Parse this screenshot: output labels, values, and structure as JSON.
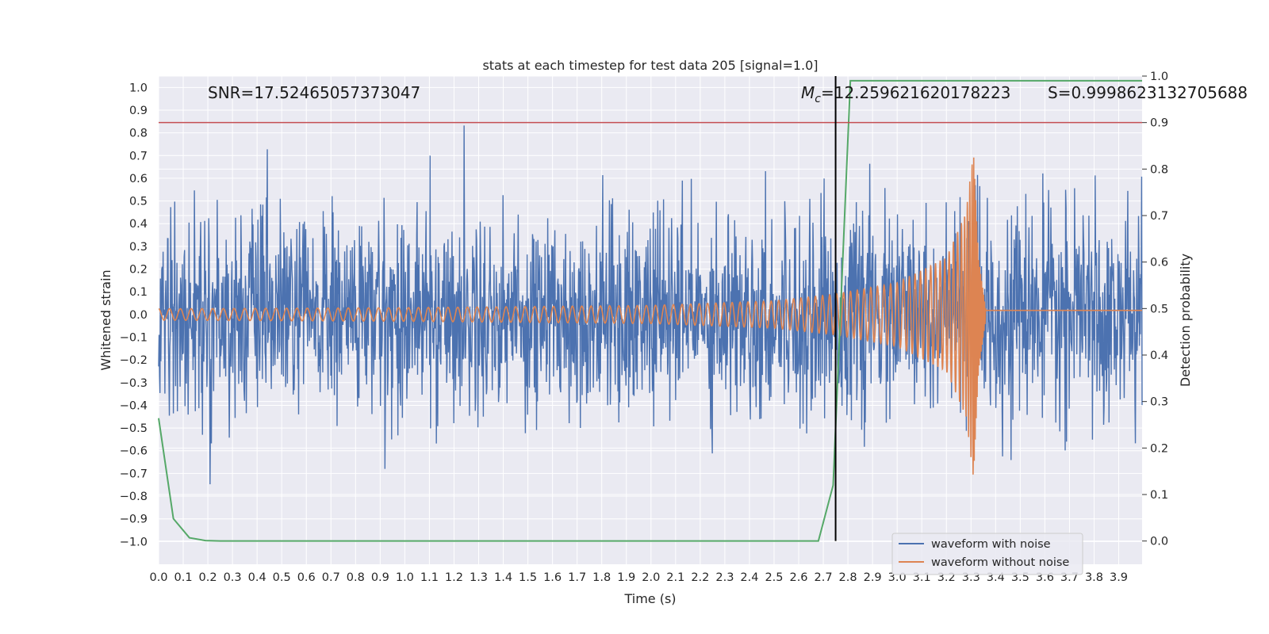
{
  "chart_data": {
    "type": "line",
    "title": "stats at each timestep for test data 205 [signal=1.0]",
    "xlabel": "Time (s)",
    "ylabel_left": "Whitened strain",
    "ylabel_right": "Detection probability",
    "xlim": [
      0.0,
      3.995
    ],
    "ylim_left": [
      -1.1,
      1.05
    ],
    "ylim_right": [
      -0.05,
      1.0
    ],
    "x_ticks": [
      "0.0",
      "0.1",
      "0.2",
      "0.3",
      "0.4",
      "0.5",
      "0.6",
      "0.7",
      "0.8",
      "0.9",
      "1.0",
      "1.1",
      "1.2",
      "1.3",
      "1.4",
      "1.5",
      "1.6",
      "1.7",
      "1.8",
      "1.9",
      "2.0",
      "2.1",
      "2.2",
      "2.3",
      "2.4",
      "2.5",
      "2.6",
      "2.7",
      "2.8",
      "2.9",
      "3.0",
      "3.1",
      "3.2",
      "3.3",
      "3.4",
      "3.5",
      "3.6",
      "3.7",
      "3.8",
      "3.9"
    ],
    "y_ticks_left": [
      "1.0",
      "0.9",
      "0.8",
      "0.7",
      "0.6",
      "0.5",
      "0.4",
      "0.3",
      "0.2",
      "0.1",
      "0.0",
      "-0.1",
      "-0.2",
      "-0.3",
      "-0.4",
      "-0.5",
      "-0.6",
      "-0.7",
      "-0.8",
      "-0.9",
      "-1.0"
    ],
    "y_ticks_right": [
      "1.0",
      "0.9",
      "0.8",
      "0.7",
      "0.6",
      "0.5",
      "0.4",
      "0.3",
      "0.2",
      "0.1",
      "0.0"
    ],
    "annotations": {
      "snr": "SNR=17.52465057373047",
      "mc_symbol": "M",
      "mc_subscript": "c",
      "mc_value": "=12.259621620178223",
      "s": "S=0.9998623132705688"
    },
    "threshold_line": {
      "axis": "right",
      "value": 0.9,
      "color": "#c44e52"
    },
    "vertical_marker": {
      "x": 2.75,
      "color": "#000000"
    },
    "grid": true,
    "legend_position": "lower-right",
    "colors": {
      "noisy": "#4c72b0",
      "clean": "#dd8452",
      "probability": "#55a868",
      "background": "#eaeaf2",
      "grid": "#ffffff"
    },
    "series": [
      {
        "name": "waveform with noise",
        "axis": "left",
        "kind": "noisy_strain",
        "approx_std": 0.22,
        "approx_range": [
          -1.0,
          0.96
        ]
      },
      {
        "name": "waveform without noise",
        "axis": "left",
        "kind": "chirp",
        "t_merger": 3.31,
        "envelope": {
          "t": [
            0.0,
            1.0,
            2.0,
            2.5,
            2.75,
            3.0,
            3.2,
            3.28,
            3.31,
            3.33,
            3.36,
            3.995
          ],
          "amp": [
            0.025,
            0.03,
            0.04,
            0.06,
            0.09,
            0.14,
            0.25,
            0.45,
            0.72,
            0.25,
            0.02,
            0.02
          ]
        },
        "frequency_hz": {
          "t": [
            0.0,
            2.0,
            3.0,
            3.25,
            3.31
          ],
          "f": [
            22.5,
            27,
            38,
            60,
            120
          ]
        }
      },
      {
        "name": "detection probability",
        "axis": "right",
        "x": [
          0.0,
          0.06,
          0.125,
          0.19,
          0.25,
          0.5,
          1.0,
          1.5,
          2.0,
          2.5,
          2.68,
          2.74,
          2.81,
          3.0,
          3.5,
          3.995
        ],
        "y": [
          0.2642,
          0.048,
          0.007,
          0.001,
          0.0,
          0.0,
          0.0,
          0.0,
          0.0,
          0.0,
          0.0,
          0.12,
          0.99,
          0.99,
          0.99,
          0.99
        ]
      }
    ]
  }
}
